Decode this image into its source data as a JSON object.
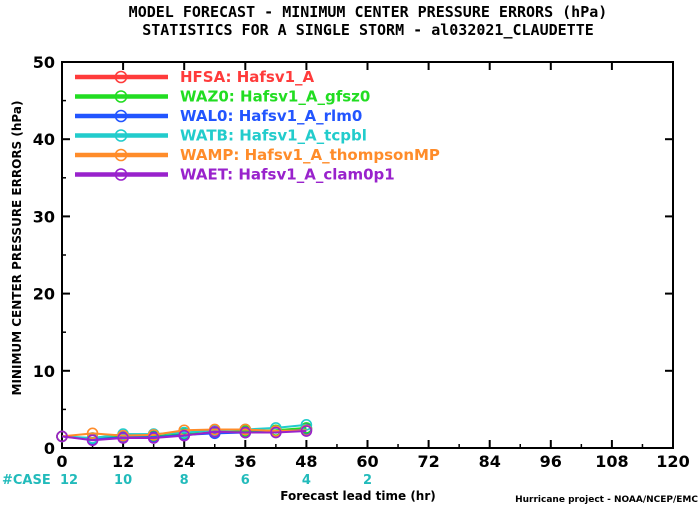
{
  "chart_data": {
    "type": "line",
    "title": "MODEL FORECAST - MINIMUM CENTER PRESSURE ERRORS (hPa)",
    "subtitle": "STATISTICS FOR A SINGLE STORM - al032021_CLAUDETTE",
    "xlabel": "Forecast lead time (hr)",
    "ylabel": "MINIMUM CENTER PRESSURE ERRORS (hPa)",
    "xlim": [
      0,
      120
    ],
    "ylim": [
      0,
      50
    ],
    "xticks": [
      "0",
      "12",
      "24",
      "36",
      "48",
      "60",
      "72",
      "84",
      "96",
      "108",
      "120"
    ],
    "yticks": [
      "0",
      "10",
      "20",
      "30",
      "40",
      "50"
    ],
    "x": [
      0,
      6,
      12,
      18,
      24,
      30,
      36,
      42,
      48
    ],
    "series": [
      {
        "name": "HFSA: Hafsv1_A",
        "color": "#ff3b3b",
        "values": [
          1.5,
          1.2,
          1.4,
          1.5,
          1.7,
          2.0,
          2.1,
          2.2,
          2.5
        ]
      },
      {
        "name": "WAZ0: Hafsv1_A_gfsz0",
        "color": "#22dd22",
        "values": [
          1.5,
          1.2,
          1.5,
          1.5,
          1.8,
          2.0,
          2.2,
          2.3,
          2.6
        ]
      },
      {
        "name": "WAL0: Hafsv1_A_rlm0",
        "color": "#2255ff",
        "values": [
          1.5,
          1.1,
          1.4,
          1.4,
          1.7,
          1.9,
          2.0,
          2.1,
          2.4
        ]
      },
      {
        "name": "WATB: Hafsv1_A_tcpbl",
        "color": "#22cccc",
        "values": [
          1.5,
          1.3,
          1.8,
          1.8,
          2.0,
          2.3,
          2.4,
          2.6,
          3.0
        ]
      },
      {
        "name": "WAMP: Hafsv1_A_thompsonMP",
        "color": "#ff8c2a",
        "values": [
          1.5,
          1.9,
          1.6,
          1.7,
          2.3,
          2.4,
          2.4,
          2.2,
          2.3
        ]
      },
      {
        "name": "WAET: Hafsv1_A_clam0p1",
        "color": "#9922cc",
        "values": [
          1.5,
          1.0,
          1.3,
          1.3,
          1.6,
          2.1,
          2.0,
          2.0,
          2.2
        ]
      }
    ],
    "legend_position": "top-left",
    "case_counts": {
      "label": "#CASE",
      "color": "#22bbbb",
      "x": [
        0,
        12,
        24,
        36,
        48,
        60
      ],
      "values": [
        "12",
        "10",
        "8",
        "6",
        "4",
        "2"
      ]
    },
    "grid": false
  },
  "footer": {
    "credit": "Hurricane project - NOAA/NCEP/EMC"
  }
}
